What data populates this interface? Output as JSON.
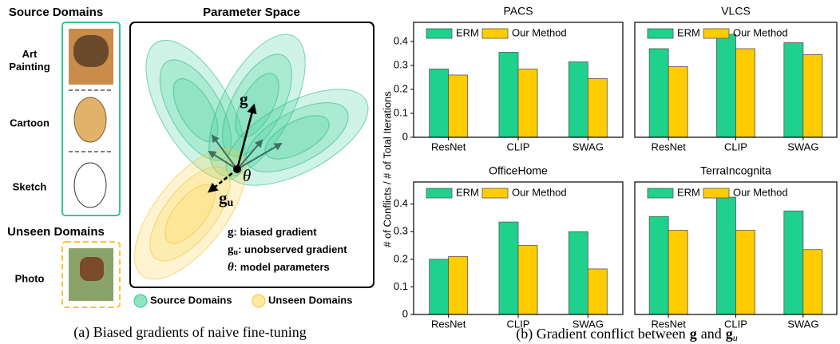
{
  "diagram": {
    "source_title": "Source Domains",
    "source_domains": [
      "Art Painting",
      "Cartoon",
      "Sketch"
    ],
    "unseen_title": "Unseen Domains",
    "unseen_domains": [
      "Photo"
    ],
    "panel_title": "Parameter Space",
    "g_label": "g",
    "gu_label": {
      "symbol": "g",
      "subscript": "u"
    },
    "theta_label": "θ",
    "key": [
      {
        "symbol": "g",
        "text": ": biased gradient"
      },
      {
        "symbol": "g",
        "subscript": "u",
        "text": ": unobserved gradient"
      },
      {
        "symbol": "θ",
        "text": ": model parameters"
      }
    ],
    "legend": [
      "Source Domains",
      "Unseen Domains"
    ]
  },
  "captions": {
    "a": "(a) Biased gradients of naive fine-tuning",
    "b": {
      "prefix": "(b) Gradient conflict between",
      "symbol": "g",
      "conjunction": "and",
      "symbol2": "g",
      "subscript": "u"
    }
  },
  "shared_ylabel": "# of Conflicts / # of Total Iterations",
  "chart_data": [
    {
      "type": "bar",
      "title": "PACS",
      "categories": [
        "ResNet",
        "CLIP",
        "SWAG"
      ],
      "series": [
        {
          "name": "ERM",
          "color": "#1fd18d",
          "values": [
            0.285,
            0.355,
            0.315
          ]
        },
        {
          "name": "Our Method",
          "color": "#ffcc00",
          "values": [
            0.26,
            0.285,
            0.245
          ]
        }
      ],
      "ylim": [
        0,
        0.48
      ],
      "yticks": [
        0,
        0.1,
        0.2,
        0.3,
        0.4
      ],
      "legend": "upper left"
    },
    {
      "type": "bar",
      "title": "VLCS",
      "categories": [
        "ResNet",
        "CLIP",
        "SWAG"
      ],
      "series": [
        {
          "name": "ERM",
          "color": "#1fd18d",
          "values": [
            0.37,
            0.43,
            0.395
          ]
        },
        {
          "name": "Our Method",
          "color": "#ffcc00",
          "values": [
            0.295,
            0.37,
            0.345
          ]
        }
      ],
      "ylim": [
        0,
        0.48
      ],
      "legend": "upper left"
    },
    {
      "type": "bar",
      "title": "OfficeHome",
      "categories": [
        "ResNet",
        "CLIP",
        "SWAG"
      ],
      "series": [
        {
          "name": "ERM",
          "color": "#1fd18d",
          "values": [
            0.2,
            0.335,
            0.3
          ]
        },
        {
          "name": "Our Method",
          "color": "#ffcc00",
          "values": [
            0.21,
            0.25,
            0.165
          ]
        }
      ],
      "ylim": [
        0,
        0.48
      ],
      "yticks": [
        0,
        0.1,
        0.2,
        0.3,
        0.4
      ],
      "legend": "upper left"
    },
    {
      "type": "bar",
      "title": "TerraIncognita",
      "categories": [
        "ResNet",
        "CLIP",
        "SWAG"
      ],
      "series": [
        {
          "name": "ERM",
          "color": "#1fd18d",
          "values": [
            0.355,
            0.425,
            0.375
          ]
        },
        {
          "name": "Our Method",
          "color": "#ffcc00",
          "values": [
            0.305,
            0.305,
            0.235
          ]
        }
      ],
      "ylim": [
        0,
        0.48
      ],
      "legend": "upper left"
    }
  ]
}
